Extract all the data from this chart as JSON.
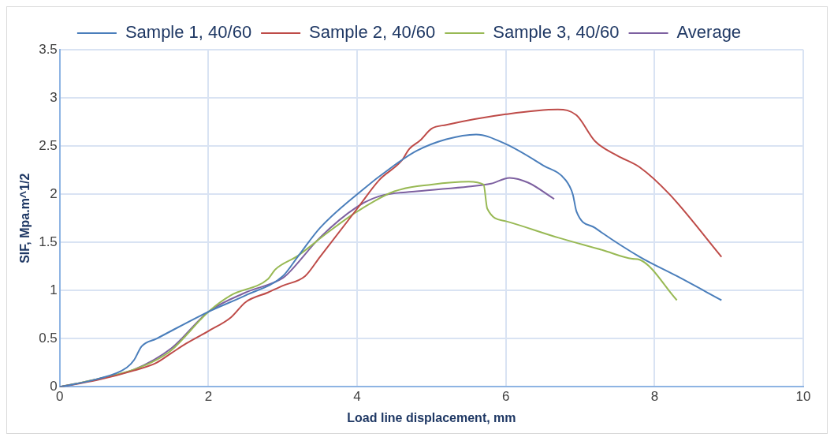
{
  "chart_data": {
    "type": "line",
    "xlabel": "Load line displacement, mm",
    "ylabel": "SIF, Mpa.m^1/2",
    "xlim": [
      0,
      10
    ],
    "xticks": [
      0,
      2,
      4,
      6,
      8,
      10
    ],
    "ylim": [
      0,
      3.5
    ],
    "yticks": [
      0,
      0.5,
      1,
      1.5,
      2,
      2.5,
      3,
      3.5
    ],
    "grid": true,
    "legend": "top",
    "marker": "none",
    "series": [
      {
        "name": "Sample 1, 40/60",
        "color": "#4a7ebb",
        "x": [
          0,
          0.5,
          0.9,
          1.0,
          1.1,
          1.3,
          2,
          2.5,
          3.0,
          3.2,
          3.5,
          4,
          4.5,
          4.8,
          5.2,
          5.6,
          6,
          6.5,
          6.8,
          6.9,
          6.95,
          7.2,
          7.8,
          8.3,
          8.9
        ],
        "values": [
          0,
          0.08,
          0.2,
          0.28,
          0.42,
          0.5,
          0.78,
          0.95,
          1.15,
          1.35,
          1.65,
          2.0,
          2.3,
          2.45,
          2.57,
          2.62,
          2.52,
          2.3,
          2.15,
          2.0,
          1.82,
          1.65,
          1.35,
          1.15,
          0.9
        ]
      },
      {
        "name": "Sample 2, 40/60",
        "color": "#be4b48",
        "x": [
          0,
          0.5,
          1.0,
          1.3,
          1.5,
          1.7,
          2.0,
          2.3,
          2.5,
          2.8,
          3.0,
          3.3,
          3.5,
          4,
          4.3,
          4.6,
          4.7,
          4.85,
          5.0,
          5.2,
          6,
          6.7,
          6.95,
          7.2,
          7.5,
          7.8,
          8.2,
          8.9
        ],
        "values": [
          0,
          0.07,
          0.17,
          0.25,
          0.35,
          0.45,
          0.58,
          0.72,
          0.88,
          0.98,
          1.05,
          1.15,
          1.35,
          1.85,
          2.15,
          2.35,
          2.47,
          2.56,
          2.68,
          2.72,
          2.83,
          2.88,
          2.82,
          2.55,
          2.4,
          2.28,
          2.0,
          1.35
        ]
      },
      {
        "name": "Sample 3, 40/60",
        "color": "#98b954",
        "x": [
          0,
          0.5,
          1.0,
          1.3,
          1.5,
          2.0,
          2.3,
          2.8,
          2.9,
          3.2,
          3.6,
          4,
          4.5,
          5,
          5.5,
          5.7,
          5.75,
          6,
          6.7,
          7.3,
          7.7,
          7.8,
          8.3
        ],
        "values": [
          0,
          0.08,
          0.18,
          0.28,
          0.38,
          0.78,
          0.95,
          1.12,
          1.22,
          1.36,
          1.6,
          1.82,
          2.03,
          2.1,
          2.13,
          2.1,
          1.85,
          1.72,
          1.55,
          1.42,
          1.33,
          1.32,
          0.9
        ]
      },
      {
        "name": "Average",
        "color": "#7d60a0",
        "x": [
          0,
          0.5,
          1.0,
          1.5,
          2,
          2.5,
          3.0,
          3.1,
          3.5,
          4,
          4.3,
          4.8,
          5.5,
          5.8,
          6.05,
          6.3,
          6.65
        ],
        "values": [
          0,
          0.08,
          0.18,
          0.4,
          0.78,
          0.98,
          1.13,
          1.2,
          1.55,
          1.87,
          1.98,
          2.03,
          2.08,
          2.11,
          2.17,
          2.12,
          1.95
        ]
      }
    ]
  }
}
